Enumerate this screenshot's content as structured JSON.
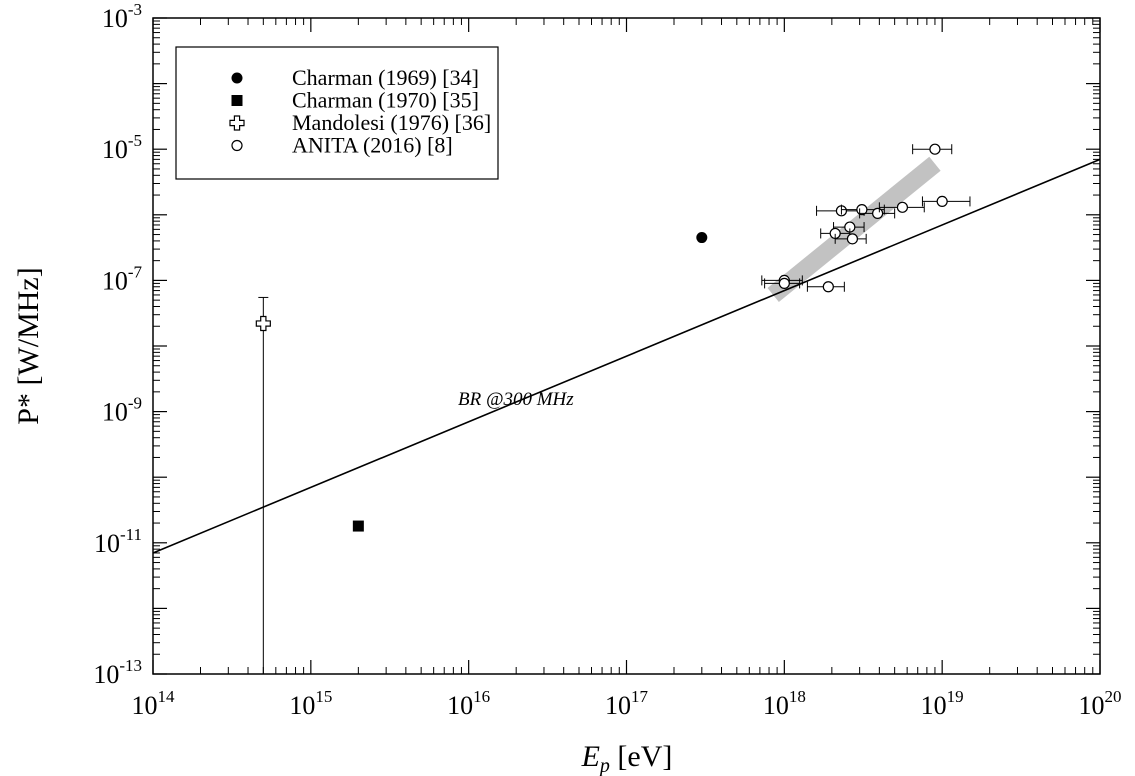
{
  "chart_data": {
    "type": "scatter",
    "xlabel": {
      "main": "E",
      "sub": "p",
      "unit": " [eV]"
    },
    "ylabel": "P* [W/MHz]",
    "x_scale": "log",
    "y_scale": "log",
    "xlim": [
      100000000000000.0,
      1e+20
    ],
    "ylim": [
      1e-13,
      0.001
    ],
    "x_ticks": [
      {
        "base": "10",
        "exp": "14"
      },
      {
        "base": "10",
        "exp": "15"
      },
      {
        "base": "10",
        "exp": "16"
      },
      {
        "base": "10",
        "exp": "17"
      },
      {
        "base": "10",
        "exp": "18"
      },
      {
        "base": "10",
        "exp": "19"
      },
      {
        "base": "10",
        "exp": "20"
      }
    ],
    "y_ticks": [
      {
        "base": "10",
        "exp": "-13"
      },
      {
        "base": "10",
        "exp": "-11"
      },
      {
        "base": "10",
        "exp": "-9"
      },
      {
        "base": "10",
        "exp": "-7"
      },
      {
        "base": "10",
        "exp": "-5"
      },
      {
        "base": "10",
        "exp": "-3"
      }
    ],
    "grid": false,
    "legend_position": "top-left",
    "legend": [
      {
        "label": "Charman (1969) [34]",
        "marker": "filled-circle"
      },
      {
        "label": "Charman (1970) [35]",
        "marker": "filled-square"
      },
      {
        "label": "Mandolesi (1976) [36]",
        "marker": "open-cross"
      },
      {
        "label": "ANITA (2016) [8]",
        "marker": "open-circle"
      }
    ],
    "series": [
      {
        "marker": "filled-circle",
        "points": [
          {
            "x": 3e+17,
            "y": 4.5e-07
          }
        ]
      },
      {
        "marker": "filled-square",
        "points": [
          {
            "x": 2000000000000000.0,
            "y": 1.8e-11
          }
        ]
      },
      {
        "marker": "open-cross",
        "points": [
          {
            "x": 500000000000000.0,
            "y": 2.2e-08,
            "y_low": 1e-13,
            "y_high": 5.5e-08
          }
        ]
      },
      {
        "marker": "open-circle",
        "points": [
          {
            "x": 9e+18,
            "y": 1e-05,
            "x_low": 6.5e+18,
            "x_high": 1.15e+19
          },
          {
            "x": 1e+19,
            "y": 1.6e-06,
            "x_low": 7.5e+18,
            "x_high": 1.5e+19
          },
          {
            "x": 2.3e+18,
            "y": 1.15e-06,
            "x_low": 1.6e+18,
            "x_high": 3.2e+18
          },
          {
            "x": 3.1e+18,
            "y": 1.2e-06,
            "x_low": 2.3e+18,
            "x_high": 4.3e+18
          },
          {
            "x": 3.9e+18,
            "y": 1.05e-06,
            "x_low": 3e+18,
            "x_high": 5e+18
          },
          {
            "x": 5.6e+18,
            "y": 1.3e-06,
            "x_low": 4e+18,
            "x_high": 7.7e+18
          },
          {
            "x": 2.6e+18,
            "y": 6.5e-07,
            "x_low": 2.05e+18,
            "x_high": 3.2e+18
          },
          {
            "x": 2.1e+18,
            "y": 5.2e-07,
            "x_low": 1.7e+18,
            "x_high": 2.6e+18
          },
          {
            "x": 2.7e+18,
            "y": 4.3e-07,
            "x_low": 2.1e+18,
            "x_high": 3.3e+18
          },
          {
            "x": 1e+18,
            "y": 1e-07,
            "x_low": 7.2e+17,
            "x_high": 1.3e+18
          },
          {
            "x": 1e+18,
            "y": 9e-08,
            "x_low": 7.5e+17,
            "x_high": 1.25e+18
          },
          {
            "x": 1.9e+18,
            "y": 8e-08,
            "x_low": 1.4e+18,
            "x_high": 2.4e+18
          }
        ]
      }
    ],
    "line": {
      "label": "BR @300 MHz",
      "points": [
        {
          "x": 100000000000000.0,
          "y": 7e-12
        },
        {
          "x": 1e+20,
          "y": 7e-06
        }
      ]
    },
    "band": {
      "color": "#c2c2c2",
      "points": [
        {
          "x": 8.5e+17,
          "y": 6e-08
        },
        {
          "x": 9e+18,
          "y": 6e-06
        }
      ]
    }
  }
}
